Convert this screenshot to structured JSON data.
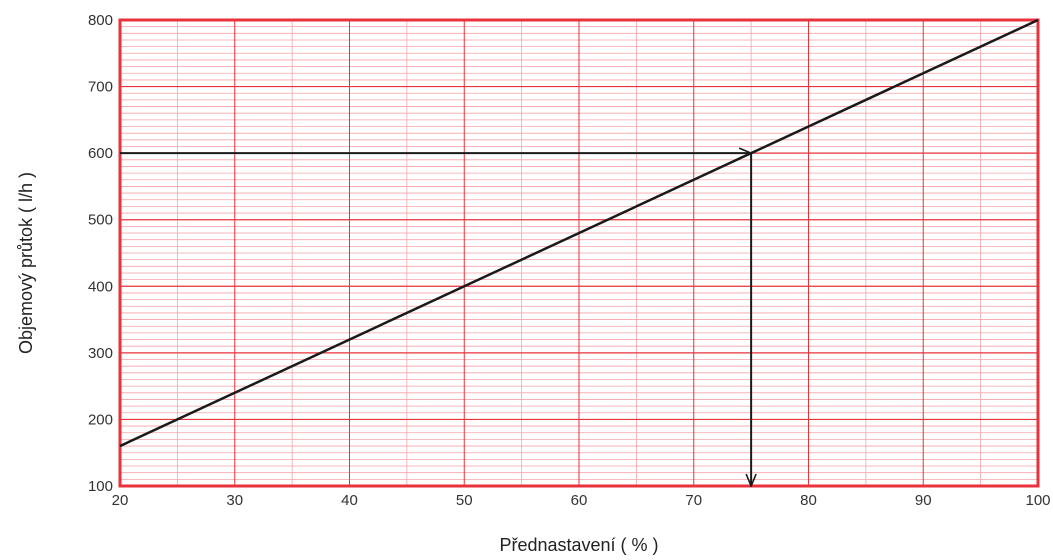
{
  "chart_data": {
    "type": "line",
    "xlabel": "Přednastavení  ( % )",
    "ylabel": "Objemový průtok ( l/h )",
    "xlim": [
      20,
      100
    ],
    "ylim": [
      100,
      800
    ],
    "x_ticks": [
      "20",
      "30",
      "40",
      "50",
      "60",
      "70",
      "80",
      "90",
      "100"
    ],
    "y_ticks": [
      "100",
      "200",
      "300",
      "400",
      "500",
      "600",
      "700",
      "800"
    ],
    "grid": true,
    "grid_minor": true,
    "colors": {
      "grid_major": "#e8323c",
      "grid_minor": "#f5a3a8",
      "frame": "#e8323c",
      "line": "#1a1a1a"
    },
    "series": [
      {
        "x": [
          20,
          100
        ],
        "y": [
          160,
          800
        ]
      }
    ],
    "annotations": [
      {
        "type": "arrow",
        "from": [
          20,
          600
        ],
        "to": [
          75,
          600
        ]
      },
      {
        "type": "arrow",
        "from": [
          75,
          600
        ],
        "to": [
          75,
          100
        ]
      }
    ]
  }
}
